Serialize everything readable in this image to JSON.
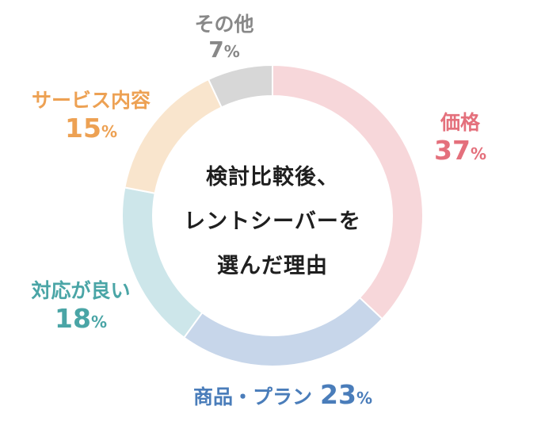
{
  "chart_data": {
    "type": "pie",
    "center_text": [
      "検討比較後、",
      "レントシーバーを",
      "選んだ理由"
    ],
    "slices": [
      {
        "label": "価格",
        "value": 37,
        "color": "#f7d7da",
        "text_color": "#e4707c"
      },
      {
        "label": "商品・プラン",
        "value": 23,
        "color": "#c7d6ea",
        "text_color": "#4a7dba"
      },
      {
        "label": "対応が良い",
        "value": 18,
        "color": "#cde6ea",
        "text_color": "#4aa5a6"
      },
      {
        "label": "サービス内容",
        "value": 15,
        "color": "#f9e5cd",
        "text_color": "#eda153"
      },
      {
        "label": "その他",
        "value": 7,
        "color": "#d7d7d7",
        "text_color": "#888888"
      }
    ],
    "unit": "%"
  }
}
